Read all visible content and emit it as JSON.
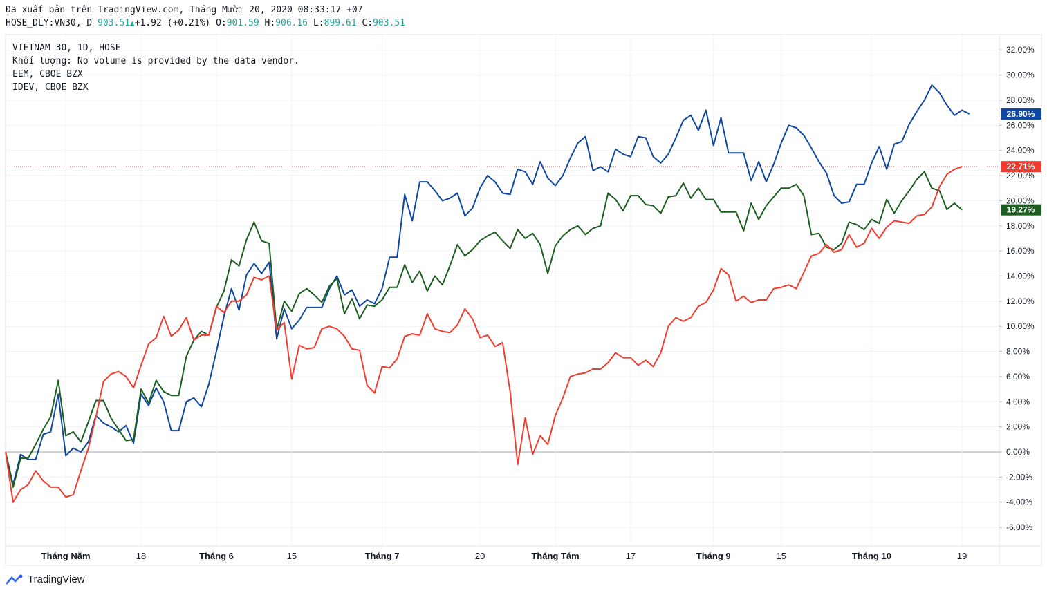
{
  "header": {
    "line1": "Đã xuất bản trên TradingView.com, Tháng Mười 20, 2020 08:33:17 +07",
    "symbol": "HOSE_DLY:VN30, D",
    "last": "903.51",
    "change": "+1.92 (+0.21%)",
    "o_label": "O:",
    "o_value": "901.59",
    "h_label": "H:",
    "h_value": "906.16",
    "l_label": "L:",
    "l_value": "899.61",
    "c_label": "C:",
    "c_value": "903.51"
  },
  "legend": {
    "line1": "VIETNAM 30, 1D, HOSE",
    "line2": "Khối lượng: No volume is provided by the data vendor.",
    "line3": "EEM, CBOE BZX",
    "line4": "IDEV, CBOE BZX"
  },
  "brand": "TradingView",
  "chart_data": {
    "type": "line",
    "y_unit": "%",
    "ylim": [
      -7,
      33
    ],
    "y_ticks": [
      "32.00%",
      "30.00%",
      "28.00%",
      "26.00%",
      "24.00%",
      "22.00%",
      "20.00%",
      "18.00%",
      "16.00%",
      "14.00%",
      "12.00%",
      "10.00%",
      "8.00%",
      "6.00%",
      "4.00%",
      "2.00%",
      "0.00%",
      "-2.00%",
      "-4.00%",
      "-6.00%"
    ],
    "x_ticks": [
      {
        "label": "Tháng Năm",
        "i": 8,
        "bold": true
      },
      {
        "label": "18",
        "i": 18,
        "bold": false
      },
      {
        "label": "Tháng 6",
        "i": 28,
        "bold": true
      },
      {
        "label": "15",
        "i": 38,
        "bold": false
      },
      {
        "label": "Tháng 7",
        "i": 50,
        "bold": true
      },
      {
        "label": "20",
        "i": 63,
        "bold": false
      },
      {
        "label": "Tháng Tám",
        "i": 73,
        "bold": true
      },
      {
        "label": "17",
        "i": 83,
        "bold": false
      },
      {
        "label": "Tháng 9",
        "i": 94,
        "bold": true
      },
      {
        "label": "15",
        "i": 103,
        "bold": false
      },
      {
        "label": "Tháng 10",
        "i": 115,
        "bold": true
      },
      {
        "label": "19",
        "i": 127,
        "bold": false
      }
    ],
    "grid": true,
    "series": [
      {
        "color": "#0d47a1",
        "badge": "26.90%",
        "values": [
          0,
          -2.6,
          -0.2,
          -0.6,
          -0.6,
          1.4,
          1.6,
          4.6,
          -0.3,
          0.3,
          0,
          0.8,
          2.9,
          2.3,
          2,
          1.6,
          2.1,
          0.7,
          4.6,
          3.7,
          5.1,
          4,
          1.7,
          1.7,
          4,
          4.3,
          3.6,
          5.4,
          8,
          10.8,
          13,
          11.3,
          14.1,
          15,
          14.2,
          15.1,
          9,
          11.4,
          9.8,
          10.5,
          11.5,
          11.5,
          11.5,
          13,
          14,
          12.5,
          12.9,
          11.6,
          12.1,
          11.8,
          13,
          15.5,
          15.5,
          20.5,
          18.4,
          21.5,
          21.5,
          20.8,
          20,
          20.2,
          20.6,
          18.8,
          19.4,
          21,
          22,
          21.5,
          20.6,
          20.5,
          22.5,
          22.3,
          21.3,
          23.1,
          21.8,
          21.2,
          22,
          23.4,
          24.6,
          25.1,
          22.4,
          22.7,
          22.3,
          24.1,
          23.7,
          23.5,
          25.1,
          25,
          23.5,
          23,
          23.7,
          25,
          26.4,
          26.8,
          25.6,
          27.2,
          24.4,
          26.6,
          23.8,
          23.8,
          23.8,
          21.6,
          23.1,
          21.5,
          22.9,
          24.6,
          26,
          25.8,
          25.2,
          24.2,
          23.1,
          22.2,
          20.4,
          19.8,
          19.9,
          21.3,
          21.3,
          23,
          24.3,
          22.5,
          24.5,
          24.7,
          26.1,
          27.1,
          28,
          29.2,
          28.6,
          27.6,
          26.8,
          27.2,
          26.9
        ]
      },
      {
        "color": "#1b5e20",
        "badge": "19.27%",
        "values": [
          0,
          -2.8,
          -0.5,
          -0.5,
          0.6,
          1.8,
          2.8,
          5.7,
          1.3,
          1.6,
          0.8,
          2.4,
          4.1,
          4.1,
          2.7,
          1.8,
          0.9,
          1,
          5,
          3.9,
          5.7,
          4.8,
          4.5,
          4.5,
          7.6,
          8.9,
          9.6,
          9.3,
          11.5,
          12.8,
          15.3,
          14.8,
          16.9,
          18.3,
          16.8,
          16.6,
          9.7,
          12,
          11.2,
          12.6,
          13,
          12.5,
          11.9,
          13.2,
          13.8,
          11,
          12.2,
          10.6,
          11.7,
          11.6,
          12.1,
          13.1,
          13.1,
          14.9,
          13.5,
          14.4,
          12.8,
          14,
          13.3,
          14.8,
          16.5,
          15.6,
          16.1,
          16.8,
          17.2,
          17.5,
          16.8,
          16.2,
          17.7,
          17,
          17.4,
          16.5,
          14.2,
          16.4,
          17.2,
          17.7,
          18,
          17.3,
          17.8,
          18,
          20.6,
          20.1,
          19.2,
          20.4,
          20.4,
          19.7,
          19.6,
          19,
          20.3,
          20.4,
          21.4,
          20.2,
          21,
          20.1,
          20.1,
          19.1,
          19.1,
          19.1,
          17.6,
          19.8,
          18.5,
          19.6,
          20.3,
          21,
          21,
          21.3,
          20.4,
          17.3,
          17.4,
          16.3,
          16.1,
          16.6,
          18.3,
          18.1,
          17.7,
          18.5,
          18.2,
          20.1,
          19,
          20,
          20.8,
          21.7,
          22.3,
          21,
          20.8,
          19.3,
          19.8,
          19.27
        ]
      },
      {
        "color": "#f23c30",
        "badge": "22.71%",
        "values": [
          0,
          -4,
          -3,
          -2.6,
          -1.5,
          -2.3,
          -2.8,
          -2.8,
          -3.6,
          -3.4,
          -1.5,
          0.3,
          2.8,
          5.6,
          6.2,
          6.4,
          6,
          5.1,
          6.9,
          8.6,
          9.1,
          10.8,
          9.2,
          9.7,
          10.7,
          8.9,
          9.3,
          9.3,
          11.6,
          11.1,
          12,
          12,
          12.5,
          13.9,
          13.7,
          14,
          9.7,
          10.3,
          5.8,
          8.5,
          8.2,
          8.3,
          9.8,
          10,
          9.8,
          9.2,
          8.2,
          8.1,
          5.3,
          4.7,
          6.8,
          6.7,
          7.4,
          9.2,
          9.4,
          9.3,
          11,
          9.8,
          9.6,
          9.5,
          10.1,
          11.4,
          10.6,
          9.1,
          9.3,
          8.4,
          8.7,
          4.8,
          -1,
          2.7,
          -0.2,
          1.3,
          0.6,
          2.9,
          4.3,
          6,
          6.2,
          6.3,
          6.6,
          6.6,
          7.1,
          7.9,
          7.5,
          7.5,
          6.9,
          7.3,
          6.8,
          7.9,
          10,
          10.7,
          10.4,
          10.7,
          11.6,
          11.9,
          12.9,
          14.6,
          14.1,
          12,
          12.4,
          11.9,
          12.1,
          12.1,
          13,
          13.1,
          13.3,
          13,
          14.3,
          15.6,
          15.8,
          16.5,
          15.9,
          16.1,
          17.3,
          16.3,
          16.6,
          17.8,
          17,
          17.9,
          18.4,
          18.3,
          18.2,
          18.8,
          18.9,
          19.5,
          21.1,
          22.1,
          22.5,
          22.71
        ]
      }
    ]
  }
}
